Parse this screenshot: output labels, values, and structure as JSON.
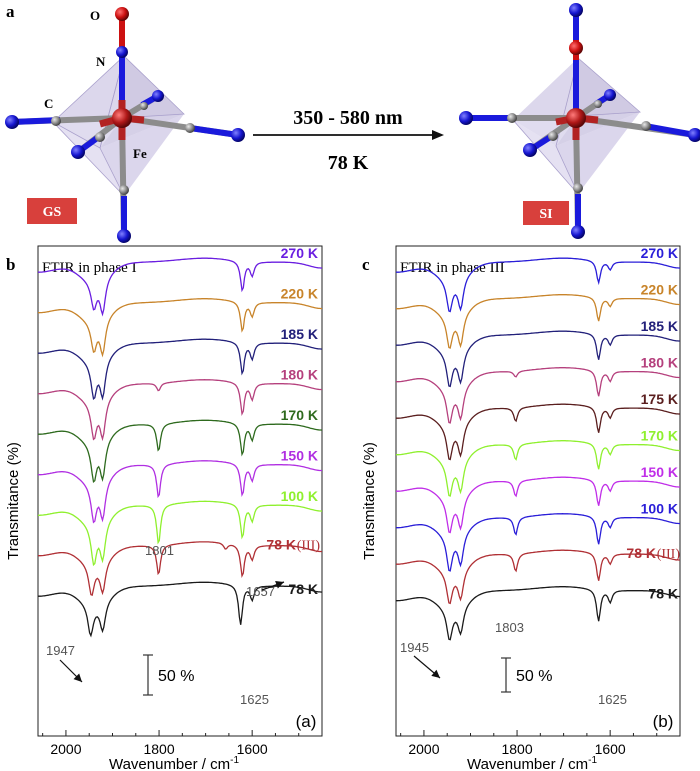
{
  "header": {
    "panel_a": "a",
    "label_O": "O",
    "label_N": "N",
    "label_C": "C",
    "label_Fe": "Fe",
    "gs_badge": "GS",
    "si_badge": "SI",
    "wavelength": "350 - 580 nm",
    "temperature": "78 K"
  },
  "colors": {
    "iron": "#b22222",
    "oxygen": "#cc1111",
    "nitrogen": "#1a1adc",
    "carbon": "#8c8c8c",
    "octahedron": "#9a8fc0",
    "badge": "#d8403c"
  },
  "chart_data": [
    {
      "type": "line",
      "panel_letter": "b",
      "title": "FTIR in phase I",
      "corner_label": "(a)",
      "xlabel": "Wavenumber / cm",
      "xlabel_sup": "-1",
      "ylabel": "Transmitance (%)",
      "xlim": [
        2060,
        1450
      ],
      "xticks": [
        2000,
        1800,
        1600
      ],
      "xtick_labels": [
        "2000",
        "1800",
        "1600"
      ],
      "scale_bar_label": "50 %",
      "annotations": [
        {
          "text": "1947",
          "x": 1947
        },
        {
          "text": "1801",
          "x": 1801
        },
        {
          "text": "1657",
          "x": 1657
        },
        {
          "text": "1625",
          "x": 1625
        }
      ],
      "series": [
        {
          "name": "270 K",
          "color": "#6a1ee0",
          "peaks": [
            [
              1940,
              26
            ],
            [
              1921,
              34
            ],
            [
              1621,
              30
            ],
            [
              1600,
              14
            ]
          ]
        },
        {
          "name": "220 K",
          "color": "#c8842a",
          "peaks": [
            [
              1940,
              28
            ],
            [
              1921,
              34
            ],
            [
              1621,
              30
            ],
            [
              1600,
              14
            ]
          ]
        },
        {
          "name": "185 K",
          "color": "#22207a",
          "peaks": [
            [
              1940,
              34
            ],
            [
              1921,
              36
            ],
            [
              1621,
              32
            ],
            [
              1600,
              16
            ]
          ]
        },
        {
          "name": "180 K",
          "color": "#b5407d",
          "peaks": [
            [
              1940,
              34
            ],
            [
              1921,
              36
            ],
            [
              1801,
              8
            ],
            [
              1621,
              32
            ],
            [
              1600,
              16
            ]
          ]
        },
        {
          "name": "170 K",
          "color": "#2e6a1e",
          "peaks": [
            [
              1940,
              36
            ],
            [
              1921,
              36
            ],
            [
              1801,
              28
            ],
            [
              1621,
              32
            ],
            [
              1600,
              16
            ]
          ]
        },
        {
          "name": "150 K",
          "color": "#b02fe2",
          "peaks": [
            [
              1940,
              36
            ],
            [
              1921,
              36
            ],
            [
              1801,
              34
            ],
            [
              1621,
              32
            ],
            [
              1600,
              16
            ]
          ]
        },
        {
          "name": "100 K",
          "color": "#8ff02e",
          "peaks": [
            [
              1940,
              38
            ],
            [
              1921,
              36
            ],
            [
              1801,
              40
            ],
            [
              1621,
              34
            ],
            [
              1600,
              16
            ]
          ]
        },
        {
          "name": "78 K",
          "suffix": "(III)",
          "color": "#b03035",
          "peaks": [
            [
              1945,
              30
            ],
            [
              1921,
              30
            ],
            [
              1801,
              30
            ],
            [
              1657,
              6
            ],
            [
              1621,
              32
            ],
            [
              1600,
              14
            ]
          ]
        },
        {
          "name": "78 K",
          "color": "#1a1a1a",
          "peaks": [
            [
              1947,
              30
            ],
            [
              1921,
              28
            ],
            [
              1625,
              40
            ],
            [
              1600,
              14
            ]
          ]
        }
      ]
    },
    {
      "type": "line",
      "panel_letter": "c",
      "title": "FTIR in phase III",
      "corner_label": "(b)",
      "xlabel": "Wavenumber / cm",
      "xlabel_sup": "-1",
      "ylabel": "Transmitance (%)",
      "xlim": [
        2060,
        1450
      ],
      "xticks": [
        2000,
        1800,
        1600
      ],
      "xtick_labels": [
        "2000",
        "1800",
        "1600"
      ],
      "scale_bar_label": "50 %",
      "annotations": [
        {
          "text": "1945",
          "x": 1945
        },
        {
          "text": "1803",
          "x": 1803
        },
        {
          "text": "1625",
          "x": 1625
        }
      ],
      "series": [
        {
          "name": "270 K",
          "color": "#2a1ed8",
          "peaks": [
            [
              1945,
              30
            ],
            [
              1921,
              30
            ],
            [
              1625,
              22
            ],
            [
              1600,
              8
            ]
          ]
        },
        {
          "name": "220 K",
          "color": "#c8842a",
          "peaks": [
            [
              1945,
              30
            ],
            [
              1921,
              30
            ],
            [
              1625,
              24
            ],
            [
              1600,
              8
            ]
          ]
        },
        {
          "name": "185 K",
          "color": "#22207a",
          "peaks": [
            [
              1945,
              32
            ],
            [
              1921,
              30
            ],
            [
              1625,
              26
            ],
            [
              1600,
              10
            ]
          ]
        },
        {
          "name": "180 K",
          "color": "#b5407d",
          "peaks": [
            [
              1945,
              32
            ],
            [
              1921,
              30
            ],
            [
              1803,
              6
            ],
            [
              1625,
              26
            ],
            [
              1600,
              10
            ]
          ]
        },
        {
          "name": "175 K",
          "color": "#5a1e1e",
          "peaks": [
            [
              1945,
              32
            ],
            [
              1921,
              30
            ],
            [
              1803,
              14
            ],
            [
              1625,
              26
            ],
            [
              1600,
              10
            ]
          ]
        },
        {
          "name": "170 K",
          "color": "#8ff02e",
          "peaks": [
            [
              1945,
              32
            ],
            [
              1921,
              30
            ],
            [
              1803,
              16
            ],
            [
              1625,
              26
            ],
            [
              1600,
              10
            ]
          ]
        },
        {
          "name": "150 K",
          "color": "#c02ee8",
          "peaks": [
            [
              1945,
              32
            ],
            [
              1921,
              30
            ],
            [
              1803,
              16
            ],
            [
              1625,
              26
            ],
            [
              1600,
              10
            ]
          ]
        },
        {
          "name": "100 K",
          "color": "#2a1ed8",
          "peaks": [
            [
              1945,
              34
            ],
            [
              1921,
              30
            ],
            [
              1803,
              18
            ],
            [
              1625,
              28
            ],
            [
              1600,
              10
            ]
          ]
        },
        {
          "name": "78 K",
          "suffix": "(III)",
          "color": "#b03035",
          "peaks": [
            [
              1945,
              30
            ],
            [
              1921,
              28
            ],
            [
              1803,
              18
            ],
            [
              1625,
              28
            ],
            [
              1600,
              10
            ]
          ]
        },
        {
          "name": "78 K",
          "color": "#1a1a1a",
          "peaks": [
            [
              1945,
              30
            ],
            [
              1921,
              26
            ],
            [
              1625,
              32
            ],
            [
              1600,
              12
            ]
          ]
        }
      ]
    }
  ]
}
